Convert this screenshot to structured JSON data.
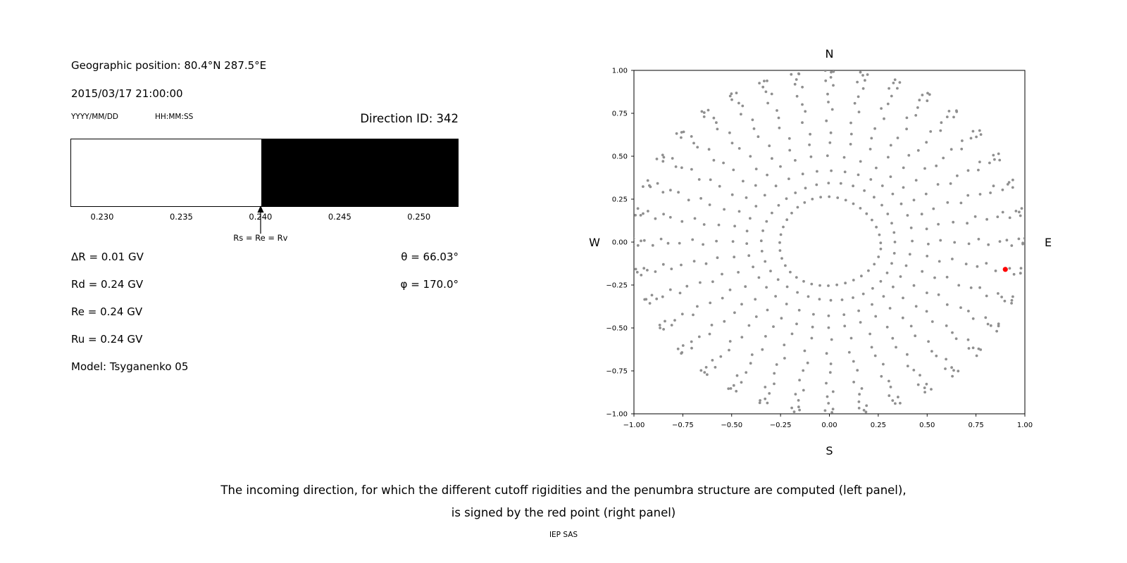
{
  "left_panel": {
    "geo_position": "Geographic position: 80.4°N 287.5°E",
    "datetime": "2015/03/17 21:00:00",
    "date_format_label": "YYYY/MM/DD",
    "time_format_label": "HH:MM:SS",
    "direction_id": "Direction ID: 342",
    "values_left": [
      "ΔR = 0.01 GV",
      "Rd = 0.24 GV",
      "Re = 0.24 GV",
      "Ru = 0.24 GV",
      "Model: Tsyganenko 05"
    ],
    "values_right": [
      "θ = 66.03°",
      "φ = 170.0°"
    ]
  },
  "caption": {
    "line1": "The incoming direction, for which the different cutoff rigidities and the penumbra structure are computed (left panel),",
    "line2": "is signed by the red point (right panel)",
    "credit": "IEP SAS"
  },
  "chart_data": [
    {
      "name": "penumbra-structure",
      "type": "bar",
      "x_range": [
        0.228,
        0.2525
      ],
      "ticks": {
        "values": [
          0.23,
          0.235,
          0.24,
          0.245,
          0.25
        ],
        "labels": [
          "0.230",
          "0.235",
          "0.240",
          "0.245",
          "0.250"
        ]
      },
      "regions": [
        {
          "from": 0.228,
          "to": 0.24,
          "fill": "#ffffff"
        },
        {
          "from": 0.24,
          "to": 0.2525,
          "fill": "#000000"
        }
      ],
      "marker": {
        "x": 0.24,
        "label": "Rs = Re = Rv"
      }
    },
    {
      "name": "incoming-direction-map",
      "type": "scatter",
      "xlim": [
        -1,
        1
      ],
      "ylim": [
        -1,
        1
      ],
      "ticks": {
        "values": [
          -1,
          -0.75,
          -0.5,
          -0.25,
          0,
          0.25,
          0.5,
          0.75,
          1
        ],
        "labels": [
          "−1.00",
          "−0.75",
          "−0.50",
          "−0.25",
          "0.00",
          "0.25",
          "0.50",
          "0.75",
          "1.00"
        ]
      },
      "compass": {
        "top": "N",
        "bottom": "S",
        "left": "W",
        "right": "E"
      },
      "grid_spec": {
        "azimuth_start_deg": 0,
        "azimuth_step_deg": 10,
        "azimuth_count": 36,
        "zenith_start_deg": 15,
        "zenith_step_deg": 5,
        "zenith_end_deg": 90,
        "radius_rule": "sin(zenith_deg)",
        "dot_color": "#8f8f8f"
      },
      "red_point": {
        "x": 0.9,
        "y": -0.159,
        "theta_deg": 66.03,
        "phi_deg": 170.0,
        "color": "#ff0000"
      }
    }
  ]
}
